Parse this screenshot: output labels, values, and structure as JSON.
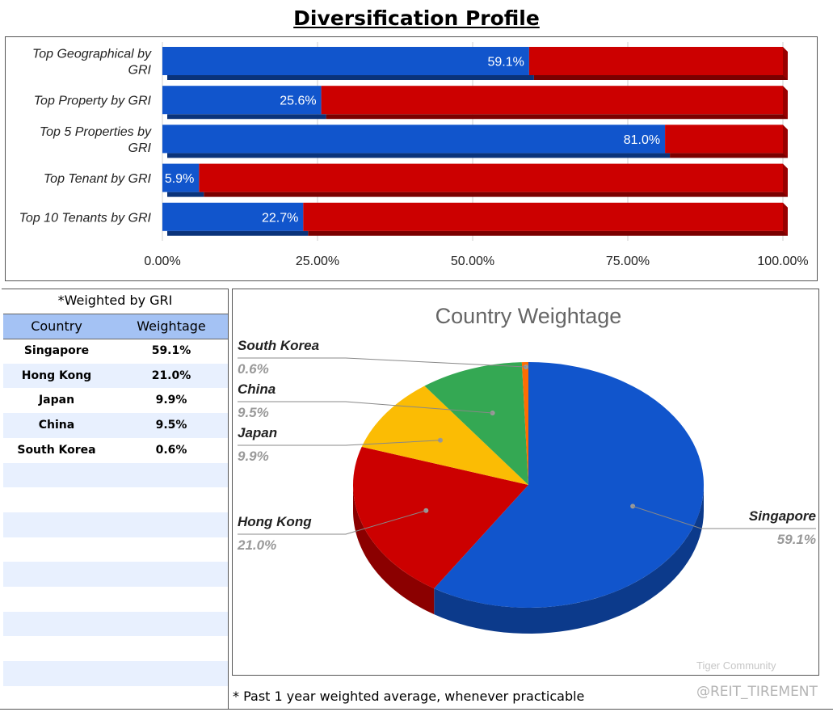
{
  "title": "Diversification Profile",
  "chart_data": [
    {
      "type": "bar",
      "orientation": "horizontal",
      "stacked": true,
      "categories": [
        "Top Geographical by GRI",
        "Top Property by GRI",
        "Top 5 Properties by GRI",
        "Top Tenant by GRI",
        "Top 10 Tenants by GRI"
      ],
      "series": [
        {
          "values": [
            59.1,
            25.6,
            81.0,
            5.9,
            22.7
          ],
          "labels": [
            "59.1%",
            "25.6%",
            "81.0%",
            "5.9%",
            "22.7%"
          ],
          "color": "#1155cc"
        },
        {
          "values": [
            40.9,
            74.4,
            19.0,
            94.1,
            77.3
          ],
          "color": "#cc0000"
        }
      ],
      "xlim": [
        0,
        100
      ],
      "x_ticks": [
        "0.00%",
        "25.00%",
        "50.00%",
        "75.00%",
        "100.00%"
      ],
      "grid": true,
      "legend": "none"
    },
    {
      "type": "pie",
      "title": "Country Weightage",
      "style": "3d",
      "slices": [
        {
          "label": "Singapore",
          "value": 59.1,
          "text": "59.1%",
          "color": "#1155cc"
        },
        {
          "label": "Hong Kong",
          "value": 21.0,
          "text": "21.0%",
          "color": "#cc0000"
        },
        {
          "label": "Japan",
          "value": 9.9,
          "text": "9.9%",
          "color": "#fbbc04"
        },
        {
          "label": "China",
          "value": 9.5,
          "text": "9.5%",
          "color": "#34a853"
        },
        {
          "label": "South Korea",
          "value": 0.6,
          "text": "0.6%",
          "color": "#ff6d01"
        }
      ]
    }
  ],
  "table": {
    "title": "*Weighted by GRI",
    "headers": [
      "Country",
      "Weightage"
    ],
    "rows": [
      [
        "Singapore",
        "59.1%"
      ],
      [
        "Hong Kong",
        "21.0%"
      ],
      [
        "Japan",
        "9.9%"
      ],
      [
        "China",
        "9.5%"
      ],
      [
        "South Korea",
        "0.6%"
      ]
    ],
    "empty_rows": 9
  },
  "footnote": "* Past 1 year weighted average, whenever practicable",
  "watermark": {
    "community": "Tiger Community",
    "handle": "@REIT_TIREMENT"
  }
}
